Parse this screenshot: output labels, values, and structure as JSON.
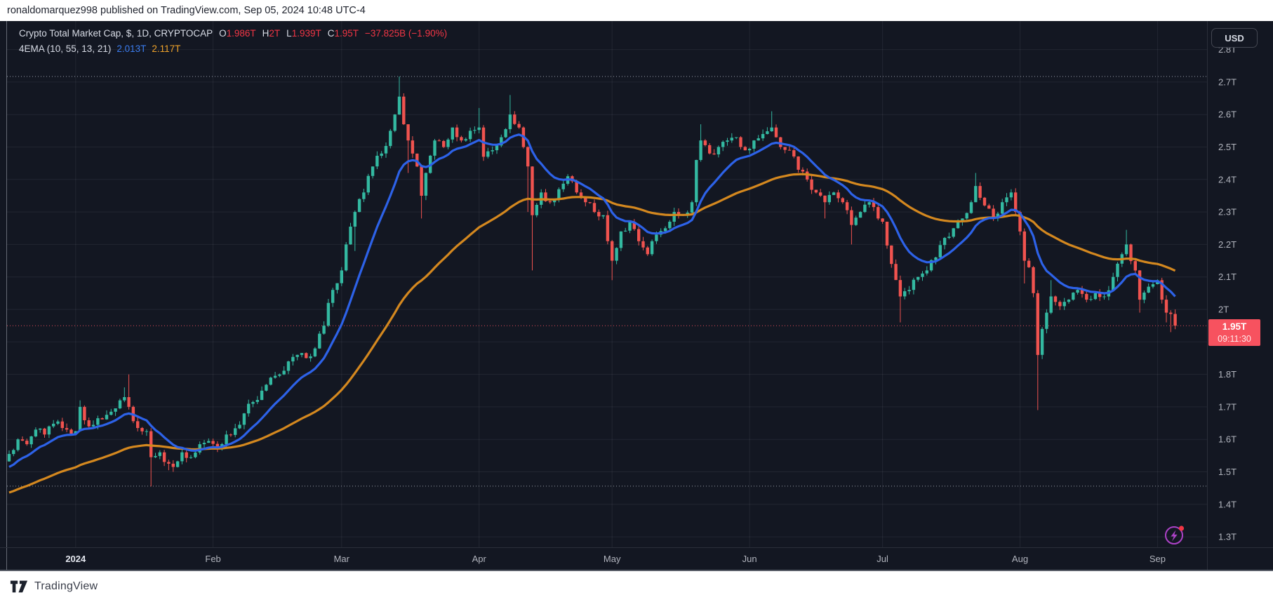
{
  "attribution": {
    "text": "ronaldomarquez998 published on TradingView.com, Sep 05, 2024 10:48 UTC-4"
  },
  "legend": {
    "title": "Crypto Total Market Cap, $, 1D, CRYPTOCAP",
    "ohlc": [
      {
        "k": "O",
        "v": "1.986T"
      },
      {
        "k": "H",
        "v": "2T"
      },
      {
        "k": "L",
        "v": "1.939T"
      },
      {
        "k": "C",
        "v": "1.95T"
      }
    ],
    "change": "−37.825B (−1.90%)",
    "indicator": {
      "name": "4EMA (10, 55, 13, 21)",
      "values": [
        {
          "v": "2.013T",
          "color": "#3b7df0"
        },
        {
          "v": "2.117T",
          "color": "#f0a32a"
        }
      ]
    }
  },
  "usd_button": {
    "label": "USD"
  },
  "price_label": {
    "value": "1.95T",
    "countdown": "09:11:30"
  },
  "watermark": {
    "label": "TradingView"
  },
  "quick_action": {
    "icon": "lightning-bolt-icon",
    "badge_color": "#f23645"
  },
  "chart_data": {
    "type": "candlestick",
    "symbol": "CRYPTOCAP:TOTAL",
    "title": "Crypto Total Market Cap",
    "currency": "$",
    "interval": "1D",
    "date_range": {
      "start": "2023-12-17",
      "end": "2024-09-05"
    },
    "ylim": [
      1.3,
      2.85
    ],
    "y_unit": "T",
    "current_bar": {
      "open": 1.986,
      "high": 2.0,
      "low": 1.939,
      "close": 1.95,
      "change": "−37.825B",
      "change_pct": "−1.90%"
    },
    "levels": [
      {
        "price": 2.717,
        "style": "range-high-dotted"
      },
      {
        "price": 1.456,
        "style": "range-low-dotted"
      },
      {
        "price": 1.95,
        "style": "last-price-dotted"
      }
    ],
    "indicators": [
      {
        "name": "EMA fast",
        "length": 13,
        "last": 2.013,
        "color": "#2d62e8"
      },
      {
        "name": "EMA slow",
        "length": 55,
        "last": 2.117,
        "color": "#d4881f"
      }
    ],
    "y_axis": {
      "ticks": [
        {
          "label": "2.8T",
          "p": 2.8
        },
        {
          "label": "2.7T",
          "p": 2.7
        },
        {
          "label": "2.6T",
          "p": 2.6
        },
        {
          "label": "2.5T",
          "p": 2.5
        },
        {
          "label": "2.4T",
          "p": 2.4
        },
        {
          "label": "2.3T",
          "p": 2.3
        },
        {
          "label": "2.2T",
          "p": 2.2
        },
        {
          "label": "2.1T",
          "p": 2.1
        },
        {
          "label": "2T",
          "p": 2.0
        },
        {
          "label": "1.8T",
          "p": 1.8
        },
        {
          "label": "1.7T",
          "p": 1.7
        },
        {
          "label": "1.6T",
          "p": 1.6
        },
        {
          "label": "1.5T",
          "p": 1.5
        },
        {
          "label": "1.4T",
          "p": 1.4
        },
        {
          "label": "1.3T",
          "p": 1.3
        }
      ]
    },
    "x_axis": {
      "ticks": [
        {
          "label": "2024",
          "t": 15,
          "year": true
        },
        {
          "label": "Feb",
          "t": 46
        },
        {
          "label": "Mar",
          "t": 75
        },
        {
          "label": "Apr",
          "t": 106
        },
        {
          "label": "May",
          "t": 136
        },
        {
          "label": "Jun",
          "t": 167
        },
        {
          "label": "Jul",
          "t": 197
        },
        {
          "label": "Aug",
          "t": 228
        },
        {
          "label": "Sep",
          "t": 259
        }
      ]
    },
    "anchors_note": "t = days since 2023-12-17; entries [t, close, high, low] in $T read from chart",
    "anchors": [
      [
        0,
        1.555,
        null,
        null
      ],
      [
        2,
        1.6,
        null,
        null
      ],
      [
        4,
        1.585,
        null,
        null
      ],
      [
        6,
        1.63,
        null,
        null
      ],
      [
        8,
        1.615,
        null,
        null
      ],
      [
        11,
        1.655,
        null,
        null
      ],
      [
        13,
        1.63,
        null,
        null
      ],
      [
        15,
        1.625,
        null,
        null
      ],
      [
        16,
        1.7,
        1.72,
        null
      ],
      [
        18,
        1.64,
        null,
        null
      ],
      [
        20,
        1.665,
        null,
        null
      ],
      [
        23,
        1.685,
        null,
        null
      ],
      [
        25,
        1.72,
        null,
        null
      ],
      [
        26,
        1.73,
        1.76,
        null
      ],
      [
        27,
        1.7,
        1.8,
        null
      ],
      [
        29,
        1.635,
        null,
        null
      ],
      [
        31,
        1.625,
        null,
        null
      ],
      [
        32,
        1.545,
        null,
        1.455
      ],
      [
        34,
        1.56,
        null,
        null
      ],
      [
        36,
        1.525,
        null,
        1.505
      ],
      [
        37,
        1.515,
        null,
        1.5
      ],
      [
        39,
        1.56,
        null,
        null
      ],
      [
        41,
        1.545,
        null,
        null
      ],
      [
        43,
        1.585,
        null,
        null
      ],
      [
        45,
        1.595,
        null,
        null
      ],
      [
        47,
        1.57,
        null,
        null
      ],
      [
        49,
        1.615,
        null,
        null
      ],
      [
        52,
        1.645,
        null,
        null
      ],
      [
        53,
        1.68,
        null,
        null
      ],
      [
        55,
        1.715,
        null,
        null
      ],
      [
        57,
        1.75,
        null,
        null
      ],
      [
        59,
        1.79,
        null,
        null
      ],
      [
        61,
        1.8,
        null,
        null
      ],
      [
        63,
        1.84,
        null,
        null
      ],
      [
        65,
        1.86,
        null,
        null
      ],
      [
        67,
        1.85,
        null,
        null
      ],
      [
        69,
        1.88,
        null,
        null
      ],
      [
        71,
        1.95,
        null,
        null
      ],
      [
        72,
        2.02,
        null,
        null
      ],
      [
        73,
        2.06,
        null,
        null
      ],
      [
        75,
        2.12,
        null,
        null
      ],
      [
        76,
        2.2,
        null,
        null
      ],
      [
        78,
        2.3,
        null,
        2.18
      ],
      [
        80,
        2.36,
        null,
        null
      ],
      [
        82,
        2.44,
        null,
        null
      ],
      [
        84,
        2.48,
        null,
        null
      ],
      [
        86,
        2.55,
        null,
        null
      ],
      [
        87,
        2.6,
        null,
        null
      ],
      [
        88,
        2.655,
        2.717,
        null
      ],
      [
        89,
        2.57,
        null,
        null
      ],
      [
        90,
        2.52,
        null,
        2.42
      ],
      [
        92,
        2.44,
        null,
        null
      ],
      [
        93,
        2.35,
        null,
        2.28
      ],
      [
        94,
        2.42,
        null,
        null
      ],
      [
        96,
        2.52,
        null,
        null
      ],
      [
        98,
        2.5,
        null,
        null
      ],
      [
        100,
        2.56,
        null,
        null
      ],
      [
        102,
        2.52,
        null,
        null
      ],
      [
        104,
        2.55,
        null,
        null
      ],
      [
        106,
        2.56,
        2.62,
        null
      ],
      [
        107,
        2.47,
        null,
        null
      ],
      [
        109,
        2.49,
        null,
        null
      ],
      [
        111,
        2.53,
        null,
        null
      ],
      [
        113,
        2.6,
        2.66,
        null
      ],
      [
        115,
        2.56,
        null,
        null
      ],
      [
        117,
        2.44,
        null,
        2.3
      ],
      [
        118,
        2.29,
        null,
        2.12
      ],
      [
        120,
        2.36,
        null,
        null
      ],
      [
        122,
        2.33,
        null,
        null
      ],
      [
        124,
        2.37,
        null,
        null
      ],
      [
        126,
        2.41,
        null,
        null
      ],
      [
        128,
        2.36,
        null,
        null
      ],
      [
        130,
        2.33,
        null,
        null
      ],
      [
        132,
        2.3,
        null,
        null
      ],
      [
        134,
        2.29,
        null,
        null
      ],
      [
        135,
        2.21,
        null,
        null
      ],
      [
        136,
        2.15,
        null,
        2.09
      ],
      [
        138,
        2.24,
        null,
        null
      ],
      [
        140,
        2.27,
        null,
        null
      ],
      [
        142,
        2.21,
        null,
        null
      ],
      [
        144,
        2.17,
        null,
        null
      ],
      [
        146,
        2.23,
        null,
        null
      ],
      [
        148,
        2.25,
        null,
        null
      ],
      [
        150,
        2.3,
        null,
        null
      ],
      [
        152,
        2.29,
        null,
        null
      ],
      [
        154,
        2.33,
        null,
        null
      ],
      [
        155,
        2.46,
        null,
        null
      ],
      [
        156,
        2.52,
        2.57,
        null
      ],
      [
        158,
        2.48,
        null,
        null
      ],
      [
        160,
        2.5,
        null,
        null
      ],
      [
        162,
        2.52,
        null,
        null
      ],
      [
        164,
        2.53,
        null,
        null
      ],
      [
        166,
        2.49,
        null,
        null
      ],
      [
        168,
        2.52,
        null,
        null
      ],
      [
        170,
        2.54,
        null,
        null
      ],
      [
        172,
        2.56,
        2.61,
        null
      ],
      [
        174,
        2.5,
        null,
        null
      ],
      [
        176,
        2.49,
        null,
        null
      ],
      [
        178,
        2.43,
        null,
        null
      ],
      [
        180,
        2.4,
        null,
        null
      ],
      [
        182,
        2.36,
        null,
        null
      ],
      [
        184,
        2.33,
        null,
        2.28
      ],
      [
        186,
        2.36,
        null,
        null
      ],
      [
        188,
        2.33,
        null,
        null
      ],
      [
        190,
        2.26,
        null,
        2.2
      ],
      [
        192,
        2.3,
        null,
        null
      ],
      [
        194,
        2.33,
        null,
        null
      ],
      [
        196,
        2.28,
        null,
        null
      ],
      [
        197,
        2.27,
        null,
        null
      ],
      [
        199,
        2.14,
        null,
        null
      ],
      [
        201,
        2.04,
        null,
        1.96
      ],
      [
        203,
        2.06,
        null,
        null
      ],
      [
        205,
        2.1,
        null,
        null
      ],
      [
        207,
        2.12,
        null,
        null
      ],
      [
        209,
        2.16,
        null,
        null
      ],
      [
        211,
        2.22,
        null,
        null
      ],
      [
        213,
        2.25,
        null,
        null
      ],
      [
        215,
        2.28,
        null,
        null
      ],
      [
        217,
        2.33,
        null,
        null
      ],
      [
        218,
        2.38,
        2.42,
        null
      ],
      [
        220,
        2.32,
        null,
        null
      ],
      [
        222,
        2.28,
        null,
        null
      ],
      [
        224,
        2.33,
        null,
        null
      ],
      [
        226,
        2.36,
        null,
        null
      ],
      [
        227,
        2.3,
        null,
        null
      ],
      [
        228,
        2.24,
        null,
        null
      ],
      [
        229,
        2.15,
        null,
        2.08
      ],
      [
        230,
        2.13,
        null,
        null
      ],
      [
        231,
        2.05,
        null,
        null
      ],
      [
        232,
        1.86,
        null,
        1.69
      ],
      [
        233,
        1.94,
        null,
        null
      ],
      [
        234,
        1.99,
        null,
        null
      ],
      [
        235,
        2.04,
        2.09,
        null
      ],
      [
        237,
        2.01,
        null,
        null
      ],
      [
        239,
        2.03,
        null,
        null
      ],
      [
        241,
        2.06,
        null,
        null
      ],
      [
        243,
        2.03,
        null,
        null
      ],
      [
        245,
        2.05,
        null,
        null
      ],
      [
        247,
        2.04,
        null,
        null
      ],
      [
        249,
        2.1,
        null,
        null
      ],
      [
        251,
        2.17,
        null,
        null
      ],
      [
        252,
        2.2,
        2.245,
        null
      ],
      [
        254,
        2.12,
        null,
        null
      ],
      [
        255,
        2.03,
        null,
        1.99
      ],
      [
        257,
        2.07,
        null,
        null
      ],
      [
        259,
        2.09,
        null,
        null
      ],
      [
        260,
        2.03,
        null,
        null
      ],
      [
        261,
        1.99,
        null,
        1.96
      ],
      [
        262,
        1.986,
        null,
        1.93
      ],
      [
        263,
        1.95,
        2.0,
        1.939
      ]
    ],
    "colors": {
      "bg": "#131722",
      "up": "#33b9a1",
      "down": "#f0534f",
      "ema_fast": "#2d62e8",
      "ema_slow": "#d4881f",
      "grid": "rgba(240,243,250,0.07)",
      "axis_text": "#b2b5be",
      "axis_text_bright": "#e3e6ee",
      "dotted": "#a8adb8",
      "price_line": "#f7525f",
      "border": "#3a3e4a"
    }
  }
}
